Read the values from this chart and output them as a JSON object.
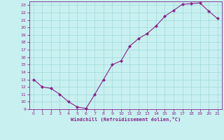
{
  "x": [
    0,
    1,
    2,
    3,
    4,
    5,
    6,
    7,
    8,
    9,
    10,
    11,
    12,
    13,
    14,
    15,
    16,
    17,
    18,
    19,
    20,
    21
  ],
  "y": [
    13,
    12,
    11.8,
    11,
    10,
    9.3,
    9.1,
    11,
    13,
    15,
    15.5,
    17.5,
    18.5,
    19.2,
    20.2,
    21.5,
    22.3,
    23.1,
    23.2,
    23.3,
    22.2,
    21.2
  ],
  "line_color": "#882288",
  "marker": "D",
  "marker_size": 2,
  "bg_color": "#c8f0f0",
  "grid_color": "#a0d8d8",
  "tick_color": "#882288",
  "xlabel": "Windchill (Refroidissement éolien,°C)",
  "ylim": [
    9,
    23.5
  ],
  "xlim": [
    -0.5,
    21.5
  ],
  "yticks": [
    9,
    10,
    11,
    12,
    13,
    14,
    15,
    16,
    17,
    18,
    19,
    20,
    21,
    22,
    23
  ],
  "xticks": [
    0,
    1,
    2,
    3,
    4,
    5,
    6,
    7,
    8,
    9,
    10,
    11,
    12,
    13,
    14,
    15,
    16,
    17,
    18,
    19,
    20,
    21
  ]
}
